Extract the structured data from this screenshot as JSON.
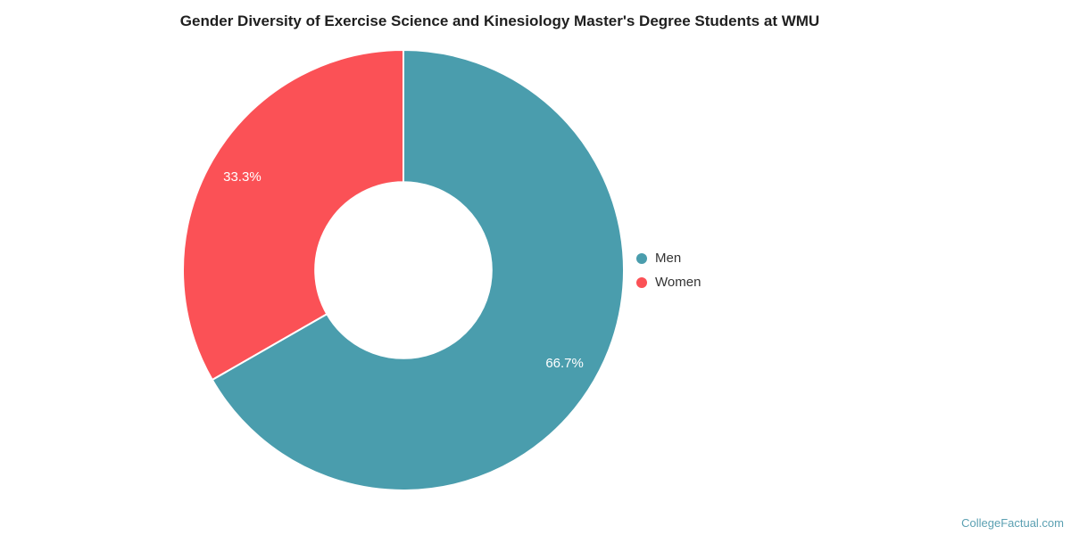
{
  "title": "Gender Diversity of Exercise Science and Kinesiology Master's Degree Students at WMU",
  "watermark": "CollegeFactual.com",
  "colors": {
    "background": "#ffffff",
    "title_text": "#1f1f1f",
    "legend_text": "#333333",
    "slice_label_text": "#ffffff",
    "slice_border": "#ffffff",
    "watermark_text": "#5ba0b2"
  },
  "chart_data": {
    "type": "pie",
    "subtype": "donut",
    "title": "Gender Diversity of Exercise Science and Kinesiology Master's Degree Students at WMU",
    "units": "percent",
    "start_angle_deg": 0,
    "direction": "clockwise",
    "inner_radius_ratio": 0.4,
    "legend_position": "right",
    "categories": [
      "Men",
      "Women"
    ],
    "values": [
      66.7,
      33.3
    ],
    "series": [
      {
        "name": "Men",
        "value": 66.7,
        "label": "66.7%",
        "color": "#4a9dad"
      },
      {
        "name": "Women",
        "value": 33.3,
        "label": "33.3%",
        "color": "#fb5156"
      }
    ]
  }
}
